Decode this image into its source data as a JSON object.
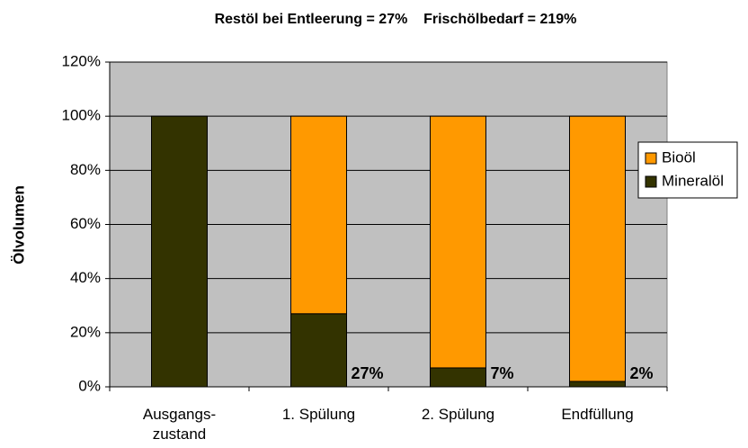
{
  "chart_data": {
    "type": "stacked_bar",
    "title": "Restöl bei Entleerung = 27%    Frischölbedarf = 219%",
    "y_label": "Ölvolumen",
    "categories": [
      "Ausgangs-\nzustand",
      "1. Spülung",
      "2. Spülung",
      "Endfüllung"
    ],
    "series": [
      {
        "name": "Mineralöl",
        "color": "#333300",
        "values": [
          100,
          27,
          7,
          2
        ],
        "value_labels": [
          null,
          "27%",
          "7%",
          "2%"
        ]
      },
      {
        "name": "Bioöl",
        "color": "#ff9900",
        "values": [
          0,
          73,
          93,
          98
        ]
      }
    ],
    "ylim": [
      0,
      120
    ],
    "yticks": [
      {
        "value": 0,
        "label": "0%"
      },
      {
        "value": 20,
        "label": "20%"
      },
      {
        "value": 40,
        "label": "40%"
      },
      {
        "value": 60,
        "label": "60%"
      },
      {
        "value": 80,
        "label": "80%"
      },
      {
        "value": 100,
        "label": "100%"
      },
      {
        "value": 120,
        "label": "120%"
      }
    ],
    "grid": true,
    "legend": "right"
  }
}
